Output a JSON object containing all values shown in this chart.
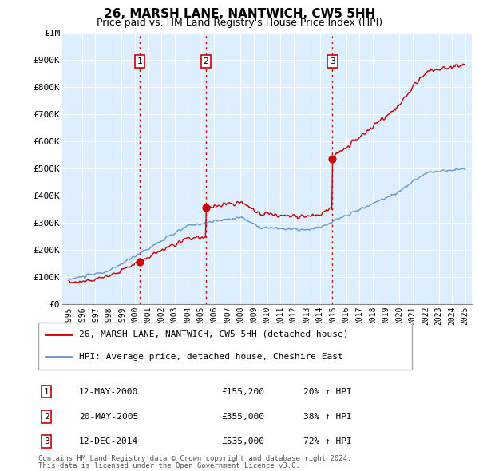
{
  "title": "26, MARSH LANE, NANTWICH, CW5 5HH",
  "subtitle": "Price paid vs. HM Land Registry's House Price Index (HPI)",
  "ylim": [
    0,
    1000000
  ],
  "yticks": [
    0,
    100000,
    200000,
    300000,
    400000,
    500000,
    600000,
    700000,
    800000,
    900000,
    1000000
  ],
  "legend_line1": "26, MARSH LANE, NANTWICH, CW5 5HH (detached house)",
  "legend_line2": "HPI: Average price, detached house, Cheshire East",
  "transactions": [
    {
      "num": 1,
      "date": "12-MAY-2000",
      "price": 155200,
      "pct": "20%",
      "x_year": 2000.37
    },
    {
      "num": 2,
      "date": "20-MAY-2005",
      "price": 355000,
      "pct": "38%",
      "x_year": 2005.37
    },
    {
      "num": 3,
      "date": "12-DEC-2014",
      "price": 535000,
      "pct": "72%",
      "x_year": 2014.95
    }
  ],
  "vline_color": "#cc0000",
  "vline_style": ":",
  "sale_dot_color": "#cc0000",
  "hpi_line_color": "#6699cc",
  "price_line_color": "#cc0000",
  "footer_line1": "Contains HM Land Registry data © Crown copyright and database right 2024.",
  "footer_line2": "This data is licensed under the Open Government Licence v3.0.",
  "xlim_left": 1994.5,
  "xlim_right": 2025.5,
  "plot_bg_color": "#ddeeff",
  "background_color": "#ffffff",
  "grid_color": "#ffffff"
}
